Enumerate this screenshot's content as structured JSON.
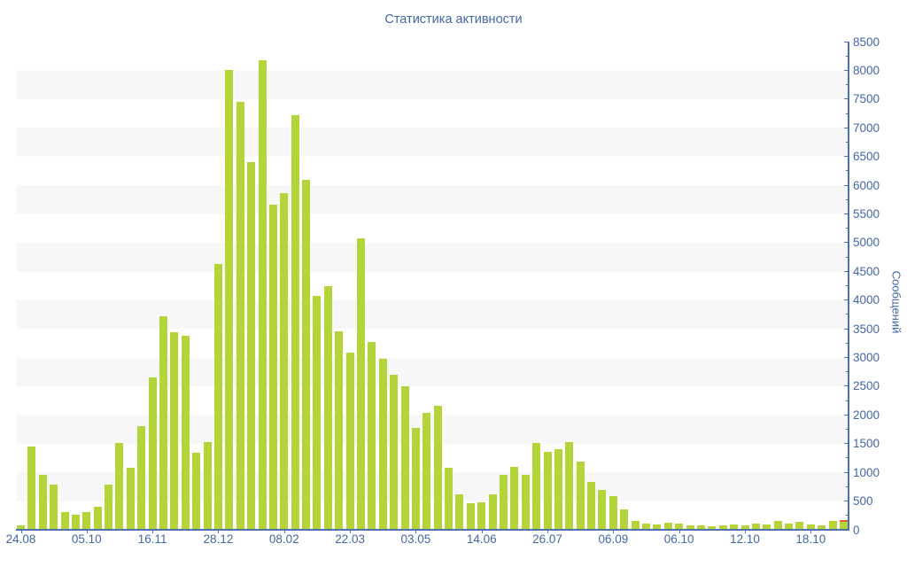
{
  "colors": {
    "bar": "#b3d53a",
    "highlight": "#e2612c",
    "text": "#4467a6",
    "axis": "#4e73ac",
    "stripe": "#f7f7f7"
  },
  "chart_data": {
    "type": "bar",
    "title": "Статистика активности",
    "ylabel": "Сообщений",
    "xlabel": "",
    "ylim": [
      0,
      8500
    ],
    "y_tick_step": 500,
    "y_minor_tick_step": 250,
    "grid": "horizontal-stripes-every-500",
    "legend": "none",
    "y_tick_labels": [
      "0",
      "500",
      "1000",
      "1500",
      "2000",
      "2500",
      "3000",
      "3500",
      "4000",
      "4500",
      "5000",
      "5500",
      "6000",
      "6500",
      "7000",
      "7500",
      "8000",
      "8500"
    ],
    "x_tick_labels": [
      {
        "bar_index": 0,
        "label": "24.08"
      },
      {
        "bar_index": 6,
        "label": "05.10"
      },
      {
        "bar_index": 12,
        "label": "16.11"
      },
      {
        "bar_index": 18,
        "label": "28.12"
      },
      {
        "bar_index": 24,
        "label": "08.02"
      },
      {
        "bar_index": 30,
        "label": "22.03"
      },
      {
        "bar_index": 36,
        "label": "03.05"
      },
      {
        "bar_index": 42,
        "label": "14.06"
      },
      {
        "bar_index": 48,
        "label": "26.07"
      },
      {
        "bar_index": 54,
        "label": "06.09"
      },
      {
        "bar_index": 60,
        "label": "06.10"
      },
      {
        "bar_index": 66,
        "label": "12.10"
      },
      {
        "bar_index": 72,
        "label": "18.10"
      }
    ],
    "values": [
      80,
      1450,
      960,
      790,
      310,
      270,
      310,
      400,
      790,
      1510,
      1080,
      1800,
      2660,
      3720,
      3440,
      3380,
      1350,
      1530,
      4630,
      8000,
      7450,
      6400,
      8180,
      5660,
      5860,
      7220,
      6090,
      4070,
      4250,
      3460,
      3080,
      5070,
      3270,
      2980,
      2700,
      2500,
      1780,
      2030,
      2160,
      1080,
      610,
      460,
      480,
      610,
      960,
      1090,
      960,
      1510,
      1360,
      1410,
      1530,
      1190,
      840,
      700,
      590,
      360,
      160,
      110,
      90,
      120,
      110,
      80,
      70,
      60,
      80,
      100,
      70,
      110,
      100,
      160,
      110,
      140,
      90,
      70,
      150,
      175
    ],
    "last_bar_segments": {
      "base_value": 135,
      "highlight_value": 40
    }
  }
}
